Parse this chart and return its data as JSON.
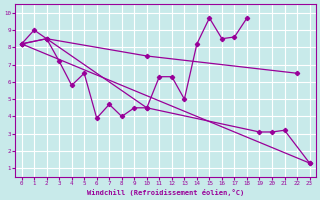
{
  "xlabel": "Windchill (Refroidissement éolien,°C)",
  "background_color": "#c8eaea",
  "line_color": "#990099",
  "grid_color": "#ffffff",
  "xlim": [
    -0.5,
    23.5
  ],
  "ylim": [
    0.5,
    10.5
  ],
  "xticks": [
    0,
    1,
    2,
    3,
    4,
    5,
    6,
    7,
    8,
    9,
    10,
    11,
    12,
    13,
    14,
    15,
    16,
    17,
    18,
    19,
    20,
    21,
    22,
    23
  ],
  "yticks": [
    1,
    2,
    3,
    4,
    5,
    6,
    7,
    8,
    9,
    10
  ],
  "line1_x": [
    0,
    1,
    2,
    3,
    4,
    5,
    6,
    7,
    8,
    9,
    10,
    11,
    12,
    13,
    14,
    15,
    16,
    17,
    18
  ],
  "line1_y": [
    8.2,
    9.0,
    8.5,
    7.2,
    5.8,
    6.5,
    3.9,
    4.7,
    4.0,
    4.5,
    4.5,
    6.3,
    6.3,
    5.0,
    8.2,
    9.7,
    8.5,
    8.6,
    9.7
  ],
  "line2_x": [
    0,
    2,
    10,
    22
  ],
  "line2_y": [
    8.2,
    8.5,
    7.5,
    6.5
  ],
  "line3_x": [
    0,
    2,
    10,
    19,
    20,
    21,
    23
  ],
  "line3_y": [
    8.2,
    8.5,
    4.5,
    3.1,
    3.1,
    3.2,
    1.3
  ],
  "line4_x": [
    0,
    23
  ],
  "line4_y": [
    8.2,
    1.3
  ]
}
